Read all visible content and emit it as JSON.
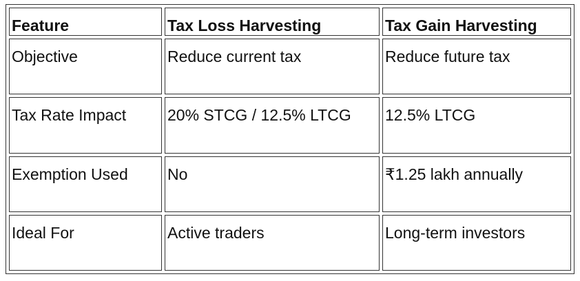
{
  "table": {
    "header": [
      "Feature",
      "Tax Loss Harvesting",
      "Tax Gain Harvesting"
    ],
    "rows": [
      [
        "Objective",
        "Reduce current tax",
        "Reduce future tax"
      ],
      [
        "Tax Rate Impact",
        "20% STCG / 12.5% LTCG",
        "12.5% LTCG"
      ],
      [
        "Exemption Used",
        "No",
        "₹1.25 lakh annually"
      ],
      [
        "Ideal For",
        "Active traders",
        "Long-term investors"
      ]
    ]
  }
}
